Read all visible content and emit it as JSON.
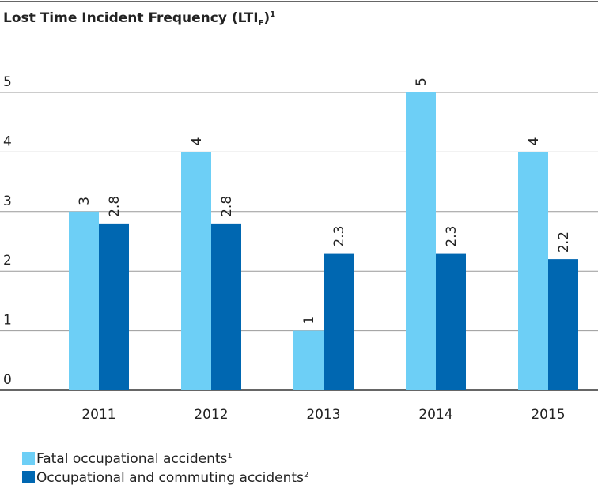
{
  "chart_data": {
    "type": "bar",
    "title": [
      "Lost Time Incident Frequency (LTI",
      "F",
      ")",
      "1"
    ],
    "categories": [
      "2011",
      "2012",
      "2013",
      "2014",
      "2015"
    ],
    "series": [
      {
        "name": "Fatal occupational accidents",
        "footnote": "1",
        "color": "#6dcff6",
        "values": [
          3,
          4,
          1,
          5,
          4
        ]
      },
      {
        "name": "Occupational and commuting accidents",
        "footnote": "2",
        "color": "#0067b1",
        "values": [
          2.8,
          2.8,
          2.3,
          2.3,
          2.2
        ]
      }
    ],
    "ylim": [
      0,
      5
    ],
    "yticks": [
      0,
      1,
      2,
      3,
      4,
      5
    ],
    "grid": true
  }
}
